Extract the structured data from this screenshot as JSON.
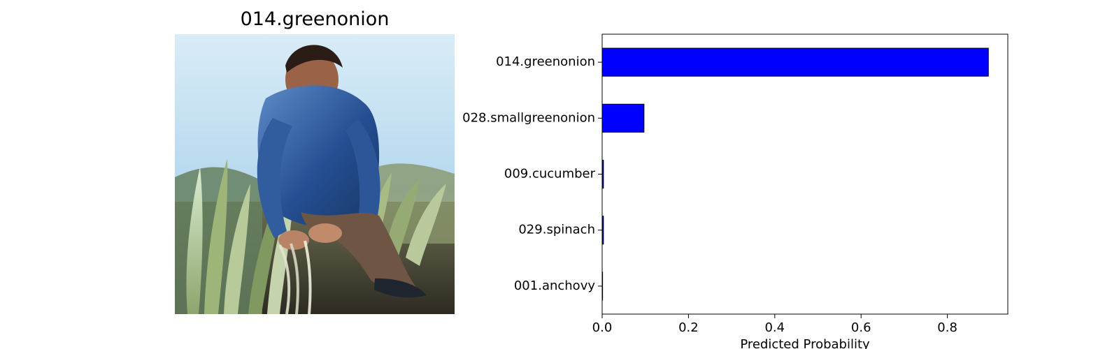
{
  "figure": {
    "image_title": "014.greenonion",
    "photo_description_icon": "man-harvesting-green-onions-photo",
    "colors": {
      "bar": "#0000ff",
      "bar_edge": "#000000",
      "axis": "#000000",
      "background": "#ffffff"
    }
  },
  "chart_data": {
    "type": "bar",
    "orientation": "horizontal",
    "categories": [
      "014.greenonion",
      "028.smallgreenonion",
      "009.cucumber",
      "029.spinach",
      "001.anchovy"
    ],
    "values": [
      0.895,
      0.097,
      0.003,
      0.003,
      0.001
    ],
    "xlabel": "Predicted Probability",
    "ylabel": "",
    "xlim": [
      0,
      0.94
    ],
    "xticks": [
      0.0,
      0.2,
      0.4,
      0.6,
      0.8
    ],
    "xtick_labels": [
      "0.0",
      "0.2",
      "0.4",
      "0.6",
      "0.8"
    ],
    "grid": false
  }
}
